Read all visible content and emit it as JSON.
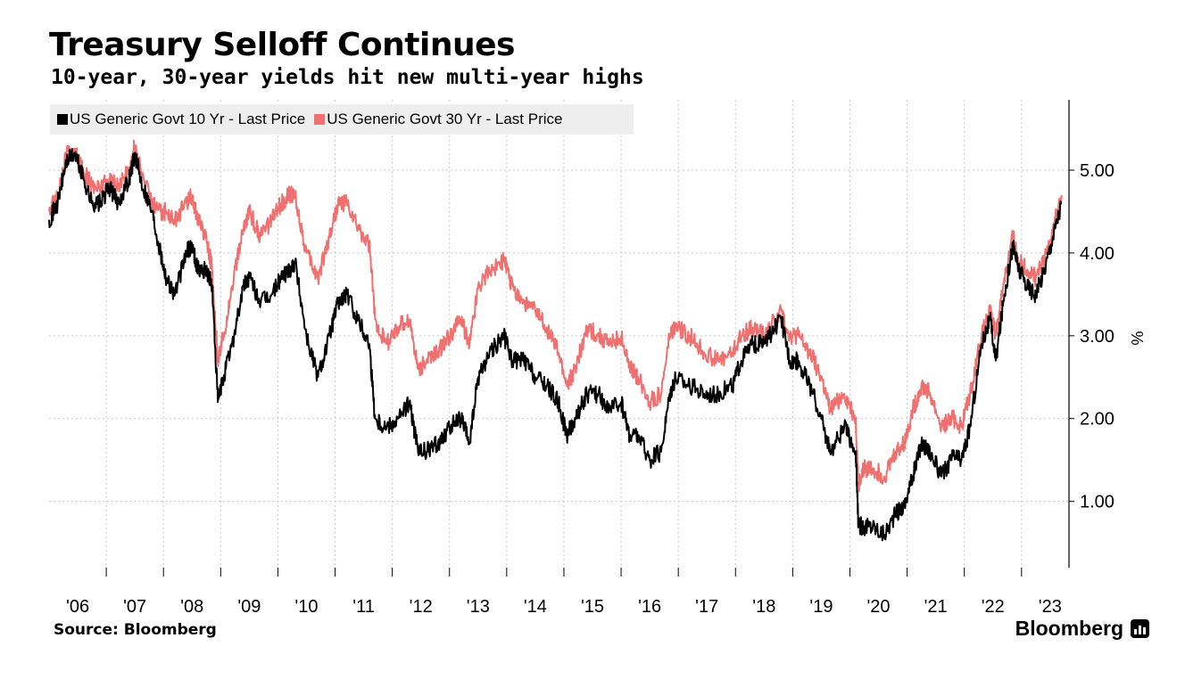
{
  "header": {
    "title": "Treasury Selloff Continues",
    "subtitle": "10-year, 30-year yields hit new multi-year highs"
  },
  "footer": {
    "source": "Source: Bloomberg",
    "brand": "Bloomberg",
    "brand_icon": "bloomberg-terminal-icon"
  },
  "chart_data": {
    "type": "line",
    "title": "Treasury Selloff Continues",
    "subtitle": "10-year, 30-year yields hit new multi-year highs",
    "ylabel": "%",
    "xlabel": "",
    "ylim": [
      0.2,
      5.85
    ],
    "xlim": [
      2006.0,
      2023.83
    ],
    "y_axis_side": "right",
    "y_ticks": [
      1.0,
      2.0,
      3.0,
      4.0,
      5.0
    ],
    "y_tick_labels": [
      "1.00",
      "2.00",
      "3.00",
      "4.00",
      "5.00"
    ],
    "x_tick_labels": [
      "'06",
      "'07",
      "'08",
      "'09",
      "'10",
      "'11",
      "'12",
      "'13",
      "'14",
      "'15",
      "'16",
      "'17",
      "'18",
      "'19",
      "'20",
      "'21",
      "'22",
      "'23"
    ],
    "grid": true,
    "legend_position": "top-left",
    "series": [
      {
        "name": "US Generic Govt 10 Yr - Last Price",
        "color": "#000000",
        "x": [
          2006.0,
          2006.15,
          2006.3,
          2006.45,
          2006.6,
          2006.75,
          2006.9,
          2007.05,
          2007.2,
          2007.4,
          2007.5,
          2007.6,
          2007.8,
          2007.95,
          2008.05,
          2008.2,
          2008.4,
          2008.5,
          2008.6,
          2008.75,
          2008.85,
          2008.95,
          2009.05,
          2009.2,
          2009.4,
          2009.5,
          2009.7,
          2009.9,
          2010.05,
          2010.2,
          2010.3,
          2010.5,
          2010.7,
          2010.9,
          2011.05,
          2011.2,
          2011.4,
          2011.6,
          2011.7,
          2011.9,
          2012.1,
          2012.3,
          2012.45,
          2012.6,
          2012.8,
          2013.0,
          2013.2,
          2013.35,
          2013.5,
          2013.7,
          2013.95,
          2014.1,
          2014.3,
          2014.5,
          2014.7,
          2014.9,
          2015.05,
          2015.2,
          2015.4,
          2015.6,
          2015.8,
          2016.0,
          2016.15,
          2016.3,
          2016.5,
          2016.7,
          2016.85,
          2016.95,
          2017.2,
          2017.45,
          2017.7,
          2017.95,
          2018.1,
          2018.3,
          2018.5,
          2018.8,
          2018.95,
          2019.1,
          2019.3,
          2019.5,
          2019.65,
          2019.9,
          2020.1,
          2020.15,
          2020.25,
          2020.4,
          2020.6,
          2020.8,
          2020.95,
          2021.1,
          2021.25,
          2021.4,
          2021.6,
          2021.8,
          2021.95,
          2022.1,
          2022.3,
          2022.45,
          2022.55,
          2022.7,
          2022.85,
          2022.95,
          2023.1,
          2023.25,
          2023.4,
          2023.55,
          2023.7
        ],
        "y": [
          4.4,
          4.6,
          5.1,
          5.2,
          4.9,
          4.6,
          4.6,
          4.8,
          4.6,
          4.9,
          5.2,
          4.9,
          4.5,
          4.0,
          3.7,
          3.5,
          4.0,
          4.1,
          3.8,
          3.8,
          3.6,
          2.2,
          2.5,
          2.9,
          3.6,
          3.7,
          3.4,
          3.5,
          3.7,
          3.8,
          3.9,
          3.0,
          2.5,
          3.0,
          3.4,
          3.5,
          3.2,
          2.9,
          2.0,
          1.9,
          2.0,
          2.2,
          1.6,
          1.6,
          1.7,
          1.9,
          2.0,
          1.7,
          2.5,
          2.8,
          3.0,
          2.7,
          2.7,
          2.5,
          2.4,
          2.2,
          1.8,
          2.0,
          2.3,
          2.3,
          2.1,
          2.2,
          1.8,
          1.8,
          1.5,
          1.6,
          2.3,
          2.5,
          2.4,
          2.3,
          2.3,
          2.4,
          2.7,
          2.9,
          2.9,
          3.2,
          2.7,
          2.7,
          2.4,
          2.0,
          1.6,
          1.9,
          1.6,
          0.7,
          0.7,
          0.7,
          0.6,
          0.85,
          0.95,
          1.3,
          1.7,
          1.6,
          1.3,
          1.55,
          1.5,
          1.9,
          2.9,
          3.2,
          2.7,
          3.5,
          4.1,
          3.8,
          3.6,
          3.5,
          3.8,
          4.2,
          4.6
        ]
      },
      {
        "name": "US Generic Govt 30 Yr - Last Price",
        "color": "#f07070",
        "x": [
          2006.0,
          2006.15,
          2006.3,
          2006.45,
          2006.6,
          2006.75,
          2006.9,
          2007.05,
          2007.2,
          2007.4,
          2007.5,
          2007.6,
          2007.8,
          2007.95,
          2008.05,
          2008.2,
          2008.4,
          2008.5,
          2008.6,
          2008.75,
          2008.85,
          2008.95,
          2009.05,
          2009.2,
          2009.4,
          2009.5,
          2009.7,
          2009.9,
          2010.05,
          2010.2,
          2010.3,
          2010.5,
          2010.7,
          2010.9,
          2011.05,
          2011.2,
          2011.4,
          2011.6,
          2011.7,
          2011.9,
          2012.1,
          2012.3,
          2012.45,
          2012.6,
          2012.8,
          2013.0,
          2013.2,
          2013.35,
          2013.5,
          2013.7,
          2013.95,
          2014.1,
          2014.3,
          2014.5,
          2014.7,
          2014.9,
          2015.05,
          2015.2,
          2015.4,
          2015.6,
          2015.8,
          2016.0,
          2016.15,
          2016.3,
          2016.5,
          2016.7,
          2016.85,
          2016.95,
          2017.2,
          2017.45,
          2017.7,
          2017.95,
          2018.1,
          2018.3,
          2018.5,
          2018.8,
          2018.95,
          2019.1,
          2019.3,
          2019.5,
          2019.65,
          2019.9,
          2020.1,
          2020.15,
          2020.25,
          2020.4,
          2020.6,
          2020.8,
          2020.95,
          2021.1,
          2021.25,
          2021.4,
          2021.6,
          2021.8,
          2021.95,
          2022.1,
          2022.3,
          2022.45,
          2022.55,
          2022.7,
          2022.85,
          2022.95,
          2023.1,
          2023.25,
          2023.4,
          2023.55,
          2023.7
        ],
        "y": [
          4.5,
          4.7,
          5.2,
          5.2,
          5.0,
          4.8,
          4.8,
          4.9,
          4.8,
          5.0,
          5.3,
          5.0,
          4.6,
          4.5,
          4.5,
          4.4,
          4.6,
          4.7,
          4.4,
          4.2,
          3.8,
          2.7,
          3.0,
          3.6,
          4.3,
          4.5,
          4.2,
          4.4,
          4.6,
          4.7,
          4.7,
          4.0,
          3.7,
          4.2,
          4.6,
          4.6,
          4.3,
          4.1,
          3.2,
          2.9,
          3.1,
          3.2,
          2.6,
          2.7,
          2.8,
          3.0,
          3.2,
          2.9,
          3.6,
          3.8,
          3.9,
          3.6,
          3.4,
          3.3,
          3.1,
          2.8,
          2.4,
          2.6,
          3.1,
          3.0,
          2.9,
          3.0,
          2.6,
          2.5,
          2.2,
          2.3,
          3.0,
          3.1,
          3.0,
          2.8,
          2.7,
          2.8,
          3.0,
          3.1,
          3.0,
          3.3,
          3.0,
          3.0,
          2.8,
          2.5,
          2.1,
          2.3,
          2.0,
          1.2,
          1.4,
          1.4,
          1.3,
          1.6,
          1.7,
          2.1,
          2.4,
          2.3,
          1.9,
          2.0,
          1.9,
          2.3,
          3.0,
          3.3,
          3.0,
          3.7,
          4.2,
          3.9,
          3.8,
          3.7,
          3.9,
          4.3,
          4.7
        ]
      }
    ]
  }
}
